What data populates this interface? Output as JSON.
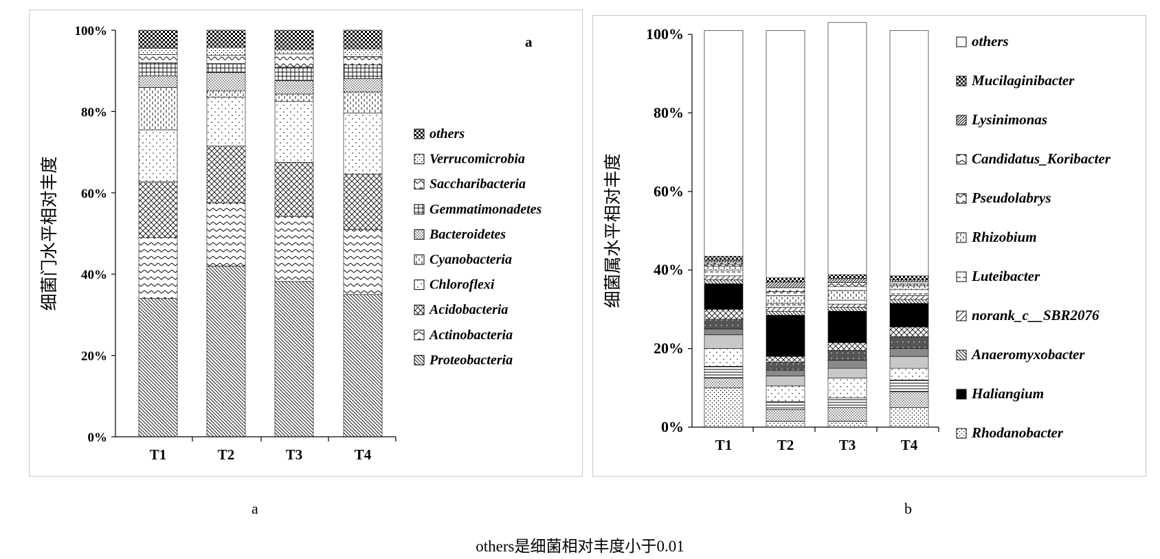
{
  "colors": {
    "stroke": "#000000",
    "frame": "#c8c8c8",
    "background": "#ffffff"
  },
  "chart_data": [
    {
      "type": "bar",
      "stacked": true,
      "percent": true,
      "panel_label": "a",
      "ylabel": "细菌门水平相对丰度",
      "xlabel": "",
      "ylim": [
        0,
        100
      ],
      "yticks": [
        "0%",
        "20%",
        "40%",
        "60%",
        "80%",
        "100%"
      ],
      "categories": [
        "T1",
        "T2",
        "T3",
        "T4"
      ],
      "legend_placement": "right",
      "series": [
        {
          "name": "Proteobacteria",
          "pattern": "diag-fine",
          "values": [
            34.0,
            42.0,
            38.2,
            35.0
          ]
        },
        {
          "name": "Actinobacteria",
          "pattern": "chevron",
          "values": [
            15.0,
            15.5,
            16.0,
            16.0
          ]
        },
        {
          "name": "Acidobacteria",
          "pattern": "crosshatch",
          "values": [
            13.7,
            14.0,
            13.3,
            13.6
          ]
        },
        {
          "name": "Chloroflexi",
          "pattern": "sparse-dots",
          "values": [
            12.8,
            12.0,
            15.0,
            15.0
          ]
        },
        {
          "name": "Cyanobacteria",
          "pattern": "vertical-dash",
          "values": [
            10.4,
            1.6,
            1.8,
            5.2
          ]
        },
        {
          "name": "Bacteroidetes",
          "pattern": "dense-dots",
          "values": [
            2.9,
            4.5,
            3.3,
            3.3
          ]
        },
        {
          "name": "Gemmatimonadetes",
          "pattern": "grid",
          "values": [
            3.2,
            2.2,
            3.3,
            3.4
          ]
        },
        {
          "name": "Saccharibacteria",
          "pattern": "wave",
          "values": [
            2.0,
            2.0,
            3.3,
            2.0
          ]
        },
        {
          "name": "Verrucomicrobia",
          "pattern": "dots",
          "values": [
            1.6,
            2.0,
            1.1,
            1.9
          ]
        },
        {
          "name": "others",
          "pattern": "checker",
          "values": [
            4.4,
            4.2,
            4.7,
            4.6
          ]
        }
      ]
    },
    {
      "type": "bar",
      "stacked": true,
      "percent": true,
      "panel_label": "",
      "ylabel": "细菌属水平相对丰度",
      "xlabel": "",
      "ylim": [
        0,
        100
      ],
      "yticks": [
        "0%",
        "20%",
        "40%",
        "60%",
        "80%",
        "100%"
      ],
      "categories": [
        "T1",
        "T2",
        "T3",
        "T4"
      ],
      "legend_placement": "right",
      "series": [
        {
          "name": "Rhodanobacter",
          "pattern": "dots",
          "values": [
            10.0,
            1.5,
            1.5,
            5.0
          ]
        },
        {
          "name": "",
          "pattern": "dense-dots",
          "values": [
            2.5,
            3.0,
            3.5,
            4.0
          ]
        },
        {
          "name": "",
          "pattern": "hlines",
          "values": [
            3.0,
            2.0,
            2.5,
            3.0
          ]
        },
        {
          "name": "",
          "pattern": "sparse-dots",
          "values": [
            4.5,
            4.0,
            5.0,
            3.0
          ]
        },
        {
          "name": "",
          "pattern": "gray-light",
          "values": [
            3.5,
            2.5,
            2.5,
            3.0
          ]
        },
        {
          "name": "",
          "pattern": "gray-mid",
          "values": [
            1.5,
            1.5,
            2.0,
            2.0
          ]
        },
        {
          "name": "",
          "pattern": "gray-dark",
          "values": [
            2.5,
            2.0,
            2.5,
            3.0
          ]
        },
        {
          "name": "",
          "pattern": "crosshatch",
          "values": [
            2.5,
            1.5,
            2.0,
            2.5
          ]
        },
        {
          "name": "Haliangium",
          "pattern": "solid-black",
          "values": [
            6.5,
            10.5,
            8.0,
            6.0
          ]
        },
        {
          "name": "Anaeromyxobacter",
          "pattern": "diag-fine",
          "values": [
            1.0,
            1.0,
            1.0,
            1.0
          ]
        },
        {
          "name": "norank_c__SBR2076",
          "pattern": "diag-coarse",
          "values": [
            1.0,
            1.0,
            0.8,
            1.0
          ]
        },
        {
          "name": "Luteibacter",
          "pattern": "hdash",
          "values": [
            1.5,
            1.0,
            1.0,
            1.5
          ]
        },
        {
          "name": "Rhizobium",
          "pattern": "vertical-dash",
          "values": [
            1.0,
            2.0,
            2.5,
            1.0
          ]
        },
        {
          "name": "Pseudolabrys",
          "pattern": "wave",
          "values": [
            0.5,
            1.0,
            1.0,
            0.5
          ]
        },
        {
          "name": "Candidatus_Koribacter",
          "pattern": "chevron",
          "values": [
            0.5,
            1.0,
            1.0,
            0.5
          ]
        },
        {
          "name": "Lysinimonas",
          "pattern": "diag-dense",
          "values": [
            0.5,
            1.5,
            1.0,
            0.5
          ]
        },
        {
          "name": "Mucilaginibacter",
          "pattern": "checker",
          "values": [
            1.0,
            1.0,
            1.0,
            1.0
          ]
        },
        {
          "name": "others",
          "pattern": "blank",
          "values": [
            57.5,
            63.0,
            64.2,
            62.5
          ]
        }
      ],
      "legend": [
        {
          "name": "others",
          "pattern": "blank"
        },
        {
          "name": "Mucilaginibacter",
          "pattern": "checker"
        },
        {
          "name": "Lysinimonas",
          "pattern": "diag-dense"
        },
        {
          "name": "Candidatus_Koribacter",
          "pattern": "chevron"
        },
        {
          "name": "Pseudolabrys",
          "pattern": "wave"
        },
        {
          "name": "Rhizobium",
          "pattern": "vertical-dash"
        },
        {
          "name": "Luteibacter",
          "pattern": "hdash"
        },
        {
          "name": "norank_c__SBR2076",
          "pattern": "diag-coarse"
        },
        {
          "name": "Anaeromyxobacter",
          "pattern": "diag-fine"
        },
        {
          "name": "Haliangium",
          "pattern": "solid-black"
        },
        {
          "name": "Rhodanobacter",
          "pattern": "dots"
        }
      ]
    }
  ],
  "captions": {
    "panel_a": "a",
    "panel_b": "b",
    "footnote": "others是细菌相对丰度小于0.01"
  }
}
